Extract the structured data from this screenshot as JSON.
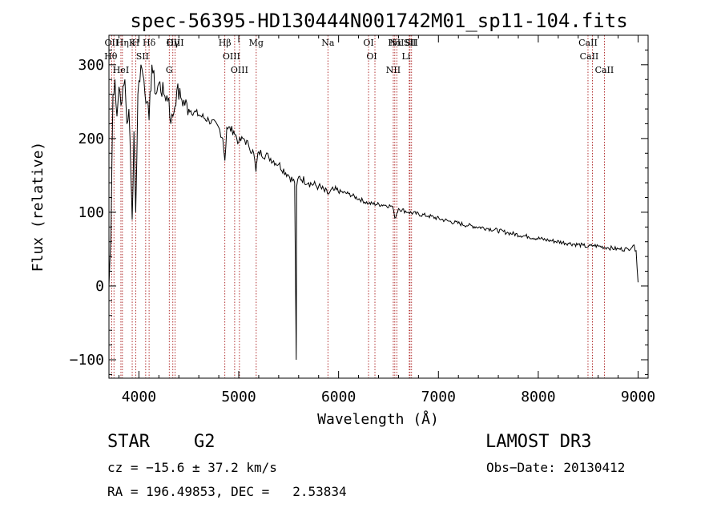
{
  "chart_data": {
    "type": "line",
    "title": "spec-56395-HD130444N001742M01_sp11-104.fits",
    "xlabel": "Wavelength (Å)",
    "ylabel": "Flux (relative)",
    "xlim": [
      3700,
      9100
    ],
    "ylim": [
      -125,
      340
    ],
    "x_ticks": [
      4000,
      5000,
      6000,
      7000,
      8000,
      9000
    ],
    "x_tick_labels": [
      "4000",
      "5000",
      "6000",
      "7000",
      "8000",
      "9000"
    ],
    "y_ticks": [
      -100,
      0,
      100,
      200,
      300
    ],
    "y_tick_labels": [
      "−100",
      "0",
      "100",
      "200",
      "300"
    ],
    "series": [
      {
        "name": "flux",
        "x": [
          3700,
          3720,
          3740,
          3760,
          3780,
          3800,
          3830,
          3860,
          3880,
          3900,
          3920,
          3933,
          3950,
          3968,
          3990,
          4020,
          4050,
          4080,
          4102,
          4130,
          4170,
          4200,
          4250,
          4300,
          4320,
          4340,
          4380,
          4420,
          4500,
          4600,
          4700,
          4800,
          4840,
          4861,
          4880,
          4950,
          5000,
          5050,
          5100,
          5150,
          5172,
          5183,
          5200,
          5300,
          5400,
          5500,
          5560,
          5576,
          5580,
          5600,
          5700,
          5800,
          5890,
          5950,
          6100,
          6300,
          6450,
          6540,
          6563,
          6600,
          6700,
          6900,
          7100,
          7300,
          7500,
          7700,
          7900,
          8100,
          8300,
          8450,
          8500,
          8550,
          8600,
          8700,
          8800,
          8900,
          8950,
          8980,
          9000
        ],
        "values": [
          0,
          70,
          260,
          280,
          230,
          270,
          250,
          280,
          220,
          240,
          150,
          90,
          210,
          100,
          260,
          300,
          280,
          250,
          225,
          300,
          260,
          275,
          260,
          255,
          220,
          230,
          265,
          255,
          240,
          232,
          225,
          215,
          200,
          170,
          215,
          210,
          195,
          200,
          190,
          180,
          155,
          170,
          182,
          175,
          165,
          150,
          140,
          -100,
          135,
          148,
          140,
          135,
          125,
          130,
          125,
          112,
          110,
          108,
          92,
          105,
          100,
          95,
          88,
          82,
          78,
          72,
          67,
          62,
          58,
          55,
          53,
          55,
          54,
          52,
          50,
          50,
          55,
          48,
          5
        ]
      }
    ],
    "lines": [
      {
        "name": "Hθ",
        "x": 3750
      },
      {
        "name": "OII",
        "x": 3727
      },
      {
        "name": "HeI",
        "x": 3820
      },
      {
        "name": "Hη",
        "x": 3835
      },
      {
        "name": "K",
        "x": 3933
      },
      {
        "name": "H",
        "x": 3968
      },
      {
        "name": "SII",
        "x": 4068
      },
      {
        "name": "Hδ",
        "x": 4102
      },
      {
        "name": "OIII",
        "x": 4363
      },
      {
        "name": "Hγ",
        "x": 4340
      },
      {
        "name": "G",
        "x": 4304
      },
      {
        "name": "Hβ",
        "x": 4861
      },
      {
        "name": "OIII",
        "x": 4959
      },
      {
        "name": "OIII",
        "x": 5007
      },
      {
        "name": "Mg",
        "x": 5175
      },
      {
        "name": "Na",
        "x": 5893
      },
      {
        "name": "OI",
        "x": 6300
      },
      {
        "name": "OI",
        "x": 6364
      },
      {
        "name": "Hα",
        "x": 6563
      },
      {
        "name": "NII",
        "x": 6548
      },
      {
        "name": "NII",
        "x": 6583
      },
      {
        "name": "SII",
        "x": 6716
      },
      {
        "name": "SII",
        "x": 6731
      },
      {
        "name": "Li",
        "x": 6708
      },
      {
        "name": "CaII",
        "x": 8498
      },
      {
        "name": "CaII",
        "x": 8542
      },
      {
        "name": "CaII",
        "x": 8662
      }
    ]
  },
  "info": {
    "object_type": "STAR",
    "subclass": "G2",
    "survey": "LAMOST DR3",
    "redshift": "cz = −15.6 ± 37.2 km/s",
    "obs_date": "Obs−Date: 20130412",
    "coords": "RA = 196.49853, DEC =   2.53834"
  },
  "colors": {
    "spectrum": "#000000",
    "line_markers": "#a00000"
  }
}
